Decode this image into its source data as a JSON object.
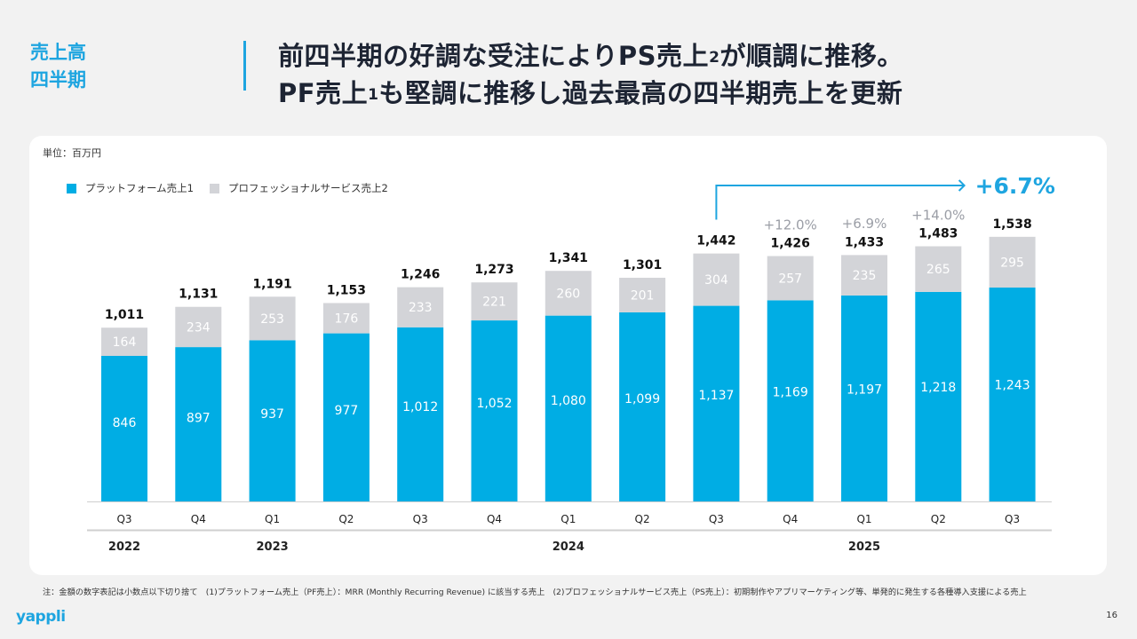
{
  "section_label": [
    "売上高",
    "四半期"
  ],
  "headline": {
    "line1_pre": "前四半期の好調な受注によりPS売上",
    "line1_sup": "2",
    "line1_post": "が順調に推移。",
    "line2_pre": "PF売上",
    "line2_sup": "1",
    "line2_post": "も堅調に推移し過去最高の四半期売上を更新"
  },
  "unit_label": "単位：百万円",
  "legend": [
    {
      "label": "プラットフォーム売上1",
      "color": "#00ade4"
    },
    {
      "label": "プロフェッショナルサービス売上2",
      "color": "#d3d4d8"
    }
  ],
  "chart_data": {
    "type": "bar",
    "stacked": true,
    "title": "",
    "xlabel": "",
    "ylabel": "百万円",
    "categories": [
      "Q3",
      "Q4",
      "Q1",
      "Q2",
      "Q3",
      "Q4",
      "Q1",
      "Q2",
      "Q3",
      "Q4",
      "Q1",
      "Q2",
      "Q3"
    ],
    "years": [
      {
        "label": "2022",
        "start_index": 0
      },
      {
        "label": "2023",
        "start_index": 2
      },
      {
        "label": "2024",
        "start_index": 6
      },
      {
        "label": "2025",
        "start_index": 10
      }
    ],
    "series": [
      {
        "name": "プラットフォーム売上1",
        "color": "#00ade4",
        "values": [
          846,
          897,
          937,
          977,
          1012,
          1052,
          1080,
          1099,
          1137,
          1169,
          1197,
          1218,
          1243
        ]
      },
      {
        "name": "プロフェッショナルサービス売上2",
        "color": "#d3d4d8",
        "values": [
          164,
          234,
          253,
          176,
          233,
          221,
          260,
          201,
          304,
          257,
          235,
          265,
          295
        ]
      }
    ],
    "totals": [
      1011,
      1131,
      1191,
      1153,
      1246,
      1273,
      1341,
      1301,
      1442,
      1426,
      1433,
      1483,
      1538
    ],
    "growth_annotations": [
      {
        "index": 9,
        "label": "+12.0%"
      },
      {
        "index": 10,
        "label": "+6.9%"
      },
      {
        "index": 11,
        "label": "+14.0%"
      }
    ],
    "yoy_arrow": {
      "from_index": 8,
      "to_index": 12,
      "label": "+6.7%",
      "color": "#1ea5e0"
    },
    "ylim": [
      0,
      1600
    ],
    "grid": false,
    "legend_position": "top-left"
  },
  "footnote": "注：金額の数字表記は小数点以下切り捨て　(1)プラットフォーム売上（PF売上）：MRR (Monthly Recurring Revenue) に該当する売上　(2)プロフェッショナルサービス売上（PS売上）：初期制作やアプリマーケティング等、単発的に発生する各種導入支援による売上",
  "logo": "yappli",
  "page_number": "16"
}
